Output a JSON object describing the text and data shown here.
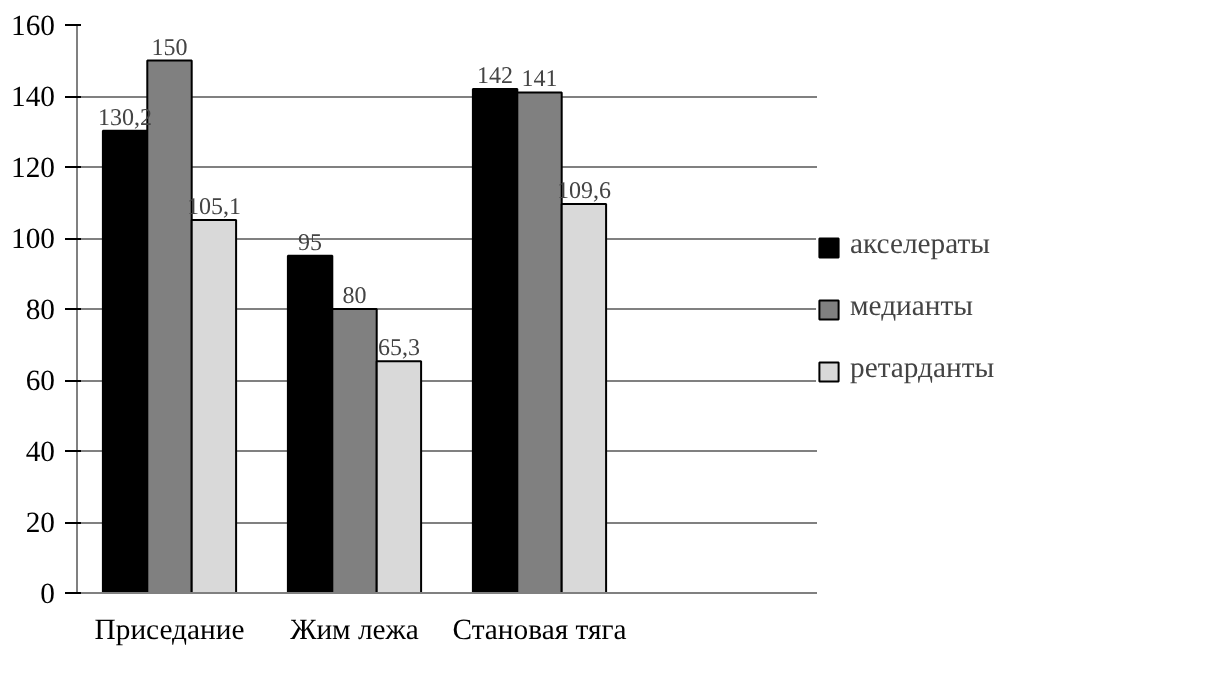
{
  "chart_data": {
    "type": "bar",
    "categories": [
      "Приседание",
      "Жим лежа",
      "Становая тяга",
      null
    ],
    "series": [
      {
        "name": "акселераты",
        "color": "#000000",
        "values": [
          130.2,
          95,
          142,
          null
        ],
        "value_labels": [
          "130,2",
          "95",
          "142",
          null
        ]
      },
      {
        "name": "медианты",
        "color": "#808080",
        "values": [
          150,
          80,
          141,
          null
        ],
        "value_labels": [
          "150",
          "80",
          "141",
          null
        ]
      },
      {
        "name": "ретарданты",
        "color": "#d9d9d9",
        "values": [
          105.1,
          65.3,
          109.6,
          null
        ],
        "value_labels": [
          "105,1",
          "65,3",
          "109,6",
          null
        ]
      }
    ],
    "ylim": [
      0,
      160
    ],
    "yticks": [
      0,
      20,
      40,
      60,
      80,
      100,
      120,
      140,
      160
    ],
    "grid": "y",
    "legend": "right"
  }
}
